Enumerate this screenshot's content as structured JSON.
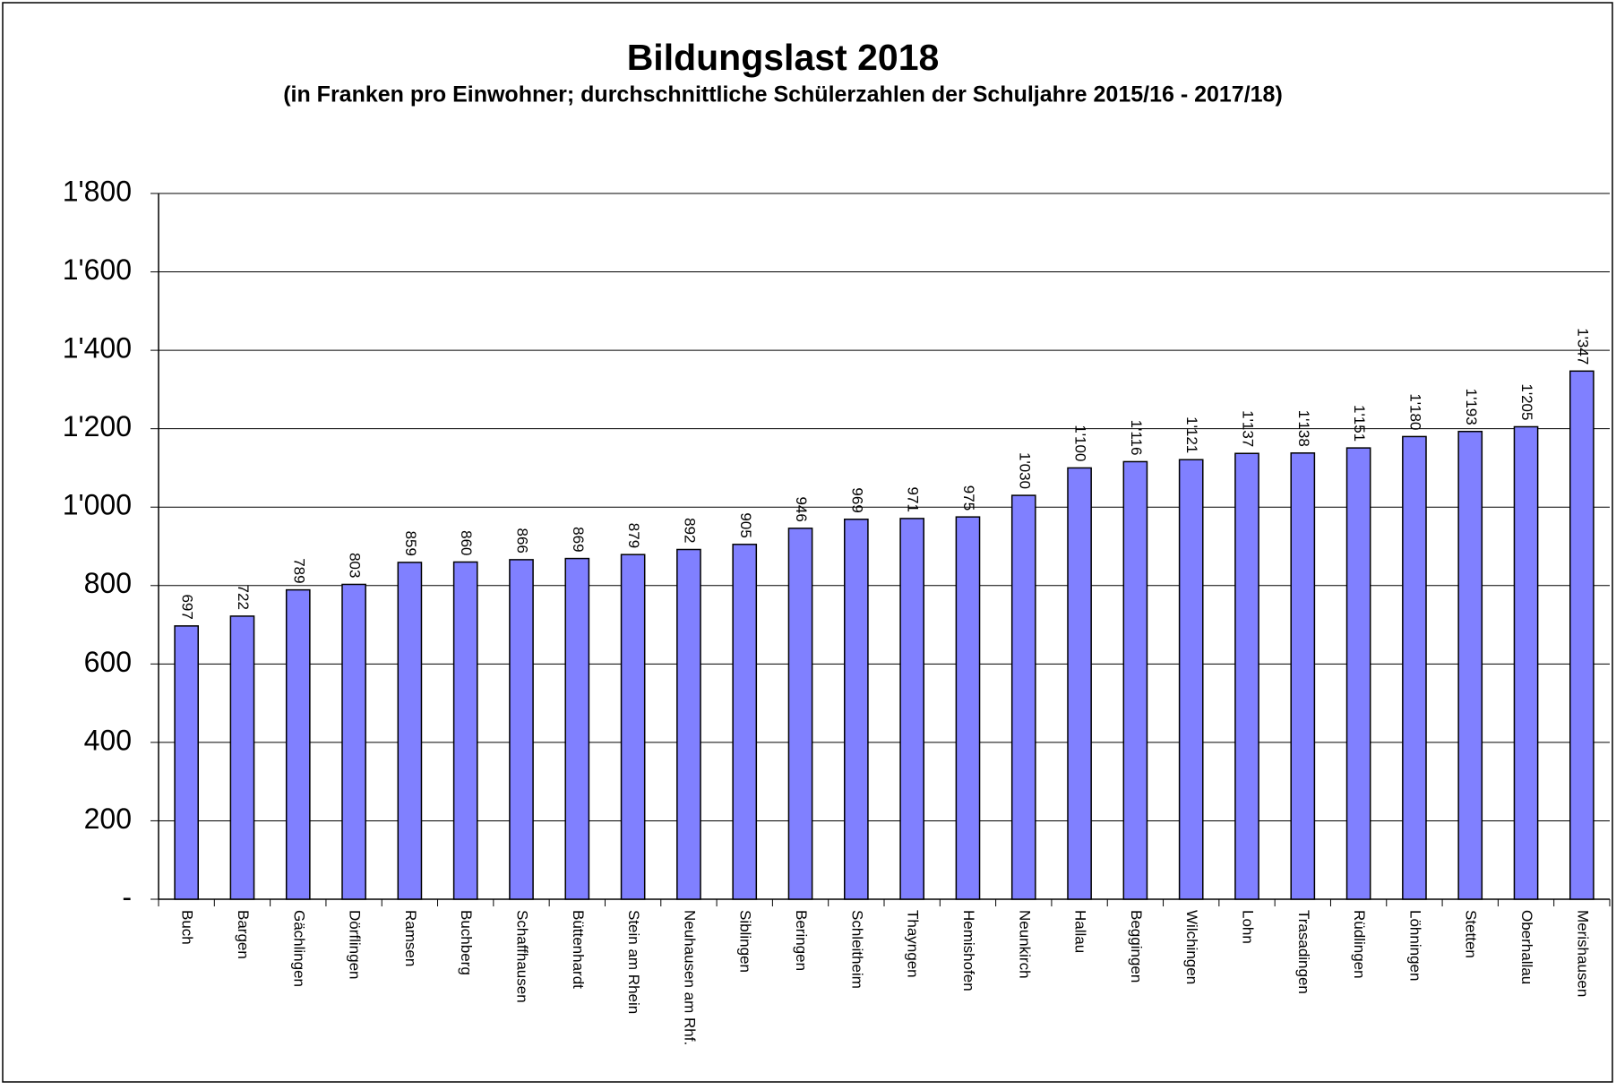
{
  "chart_data": {
    "type": "bar",
    "title": "Bildungslast 2018",
    "subtitle": "(in Franken pro Einwohner; durchschnittliche Schülerzahlen der Schuljahre 2015/16 - 2017/18)",
    "categories": [
      "Buch",
      "Bargen",
      "Gächlingen",
      "Dörflingen",
      "Ramsen",
      "Buchberg",
      "Schaffhausen",
      "Büttenhardt",
      "Stein am Rhein",
      "Neuhausen am Rhf.",
      "Siblingen",
      "Beringen",
      "Schleitheim",
      "Thayngen",
      "Hemishofen",
      "Neunkirch",
      "Hallau",
      "Beggingen",
      "Wilchingen",
      "Lohn",
      "Trasadingen",
      "Rüdlingen",
      "Löhningen",
      "Stetten",
      "Oberhallau",
      "Merishausen"
    ],
    "values": [
      697,
      722,
      789,
      803,
      859,
      860,
      866,
      869,
      879,
      892,
      905,
      946,
      969,
      971,
      975,
      1030,
      1100,
      1116,
      1121,
      1137,
      1138,
      1151,
      1180,
      1193,
      1205,
      1347
    ],
    "value_labels": [
      "697",
      "722",
      "789",
      "803",
      "859",
      "860",
      "866",
      "869",
      "879",
      "892",
      "905",
      "946",
      "969",
      "971",
      "975",
      "1'030",
      "1'100",
      "1'116",
      "1'121",
      "1'137",
      "1'138",
      "1'151",
      "1'180",
      "1'193",
      "1'205",
      "1'347"
    ],
    "color": "#8080ff",
    "ylim": [
      0,
      1800
    ],
    "yticks": [
      {
        "value": 0,
        "label": "-"
      },
      200,
      400,
      600,
      800,
      {
        "value": 1000,
        "label": "1'000"
      },
      {
        "value": 1200,
        "label": "1'200"
      },
      {
        "value": 1400,
        "label": "1'400"
      },
      {
        "value": 1600,
        "label": "1'600"
      },
      {
        "value": 1800,
        "label": "1'800"
      }
    ],
    "grid": true
  }
}
